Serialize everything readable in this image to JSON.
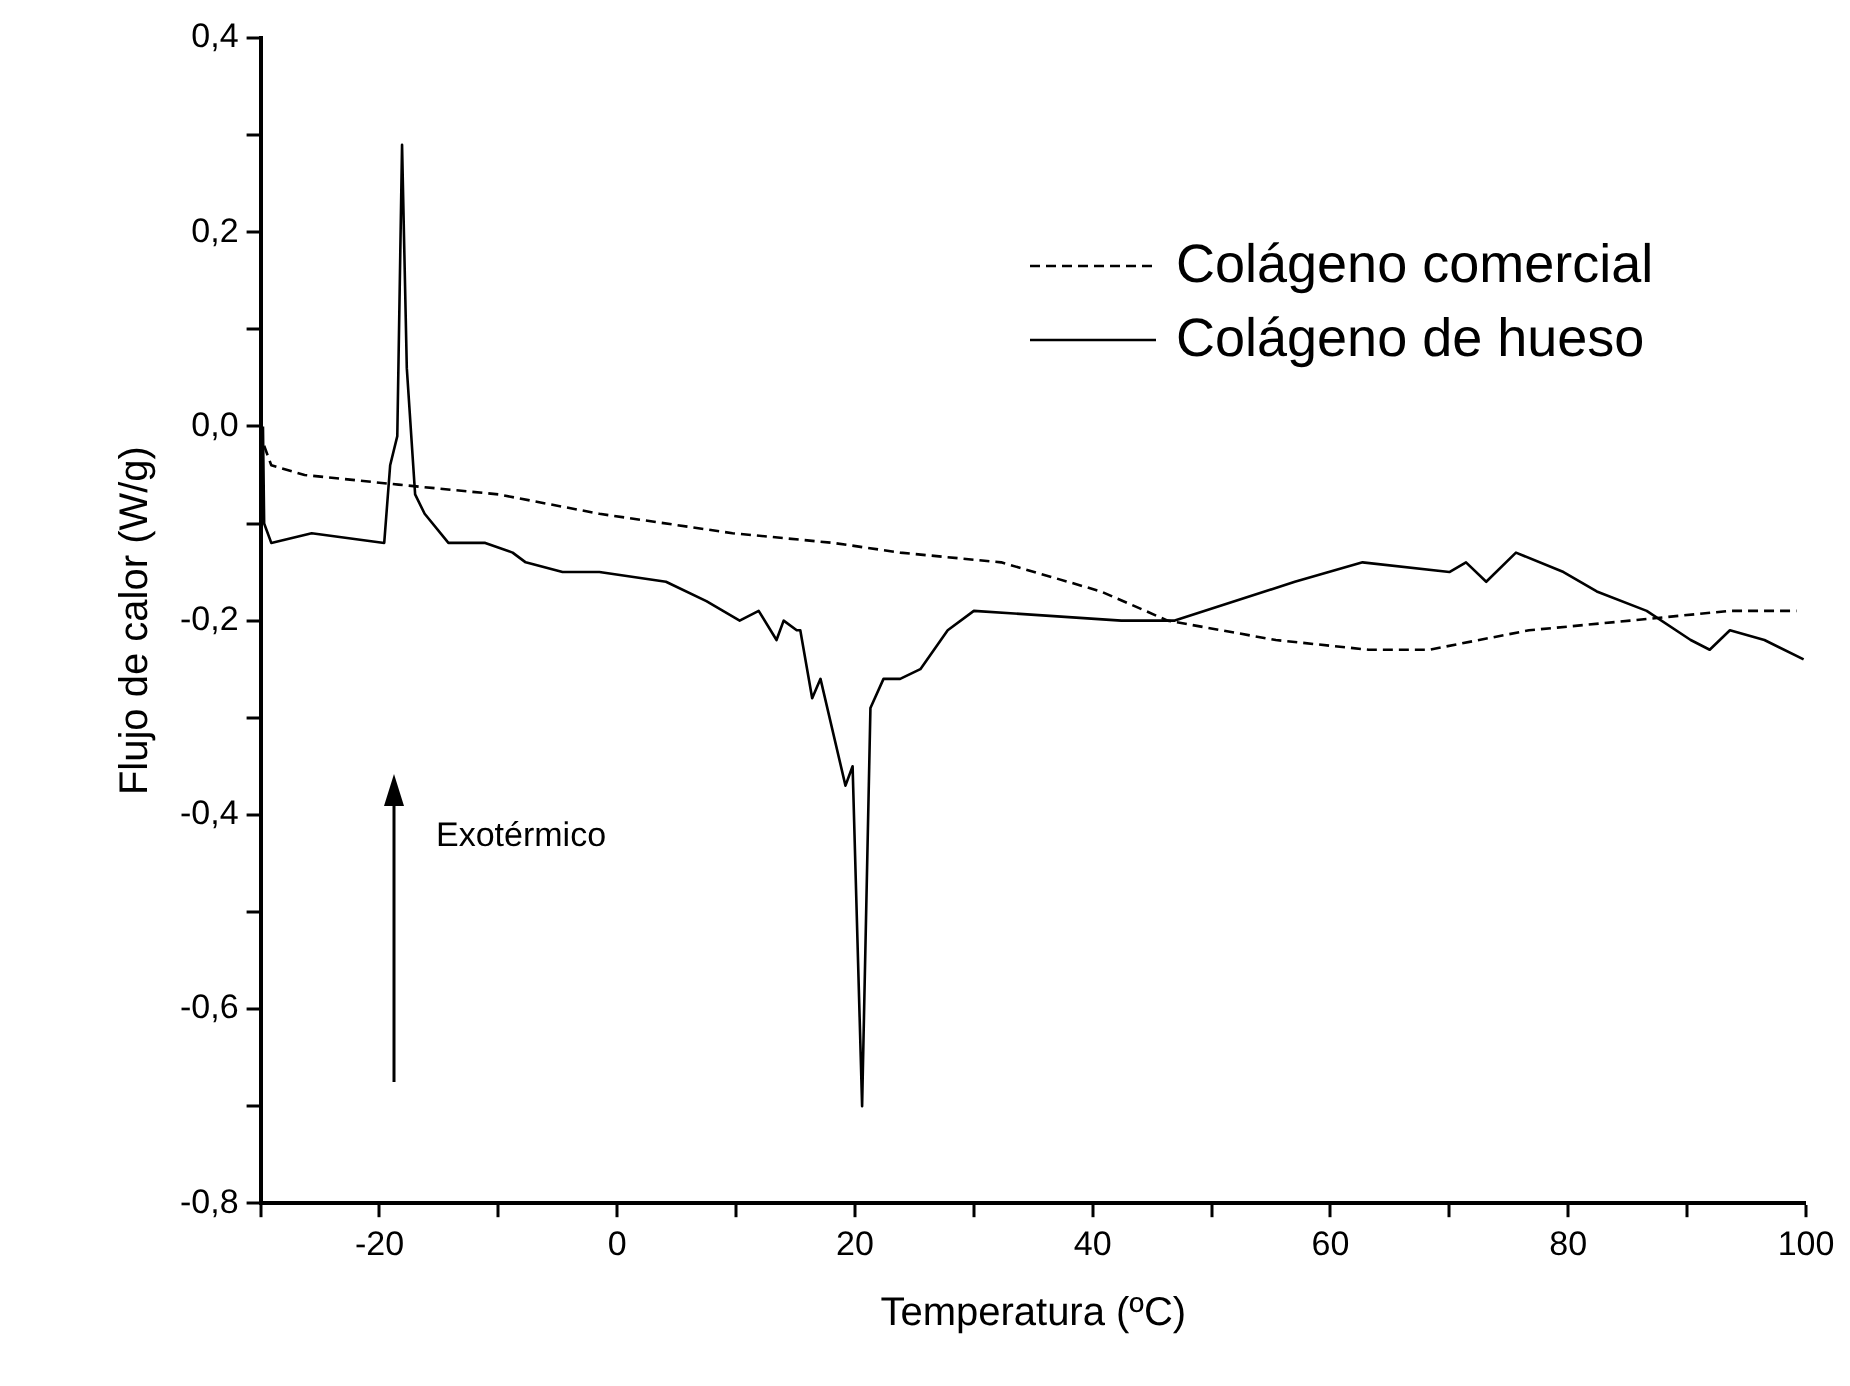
{
  "chart_data": {
    "type": "line",
    "xlabel": "Temperatura (ºC)",
    "ylabel": "Flujo de calor (W/g)",
    "xlim": [
      -30,
      100
    ],
    "ylim": [
      -0.8,
      0.4
    ],
    "xticks": [
      {
        "value": -30,
        "label": null
      },
      -20,
      {
        "value": -10,
        "label": null
      },
      0,
      {
        "value": 10,
        "label": null
      },
      20,
      {
        "value": 30,
        "label": null
      },
      40,
      {
        "value": 50,
        "label": null
      },
      60,
      {
        "value": 70,
        "label": null
      },
      80,
      {
        "value": 90,
        "label": null
      },
      100
    ],
    "yticks": [
      {
        "value": -0.8,
        "label": "-0,8"
      },
      {
        "value": -0.7,
        "label": null
      },
      {
        "value": -0.6,
        "label": "-0,6"
      },
      {
        "value": -0.5,
        "label": null
      },
      {
        "value": -0.4,
        "label": "-0,4"
      },
      {
        "value": -0.3,
        "label": null
      },
      {
        "value": -0.2,
        "label": "-0,2"
      },
      {
        "value": -0.1,
        "label": null
      },
      {
        "value": 0,
        "label": "0,0"
      },
      {
        "value": 0.1,
        "label": null
      },
      {
        "value": 0.2,
        "label": "0,2"
      },
      {
        "value": 0.3,
        "label": null
      },
      {
        "value": 0.4,
        "label": "0,4"
      }
    ],
    "grid": false,
    "legend": "top right",
    "marker": "none",
    "annotations": [
      "Exotérmico"
    ],
    "series": [
      {
        "name": "Colágeno comercial",
        "type": "line",
        "color": "#000000",
        "line_style": "dashed",
        "x": [
          -29.7,
          -29.1,
          -26.3,
          -18.4,
          -10.0,
          -1.5,
          9.7,
          18.2,
          23.8,
          32.3,
          40.7,
          46.3,
          55.4,
          63.2,
          68.3,
          76.7,
          85.2,
          93.6,
          99.2
        ],
        "values": [
          -0.02,
          -0.04,
          -0.05,
          -0.06,
          -0.07,
          -0.09,
          -0.11,
          -0.12,
          -0.13,
          -0.14,
          -0.17,
          -0.2,
          -0.22,
          -0.23,
          -0.23,
          -0.21,
          -0.2,
          -0.19,
          -0.19
        ]
      },
      {
        "name": "Colágeno de hueso",
        "type": "line",
        "color": "#000000",
        "line_style": "solid",
        "x": [
          -29.8,
          -29.7,
          -29.1,
          -25.7,
          -19.6,
          -19.1,
          -18.5,
          -18.1,
          -17.7,
          -17.0,
          -16.2,
          -14.2,
          -11.1,
          -8.8,
          -7.7,
          -4.6,
          -1.5,
          4.1,
          7.5,
          10.3,
          11.9,
          13.4,
          14.0,
          15.1,
          15.4,
          16.4,
          17.1,
          19.2,
          19.8,
          20.6,
          21.3,
          22.4,
          23.8,
          25.5,
          27.8,
          30.0,
          42.4,
          46.3,
          46.9,
          57.0,
          62.7,
          70.0,
          71.4,
          73.1,
          75.6,
          79.6,
          82.4,
          86.6,
          90.3,
          91.9,
          93.6,
          96.5,
          99.8
        ],
        "values": [
          0.0,
          -0.1,
          -0.12,
          -0.11,
          -0.12,
          -0.04,
          -0.01,
          0.29,
          0.06,
          -0.07,
          -0.09,
          -0.12,
          -0.12,
          -0.13,
          -0.14,
          -0.15,
          -0.15,
          -0.16,
          -0.18,
          -0.2,
          -0.19,
          -0.22,
          -0.2,
          -0.21,
          -0.21,
          -0.28,
          -0.26,
          -0.37,
          -0.35,
          -0.7,
          -0.29,
          -0.26,
          -0.26,
          -0.25,
          -0.21,
          -0.19,
          -0.2,
          -0.2,
          -0.2,
          -0.16,
          -0.14,
          -0.15,
          -0.14,
          -0.16,
          -0.13,
          -0.15,
          -0.17,
          -0.19,
          -0.22,
          -0.23,
          -0.21,
          -0.22,
          -0.24
        ]
      }
    ]
  }
}
